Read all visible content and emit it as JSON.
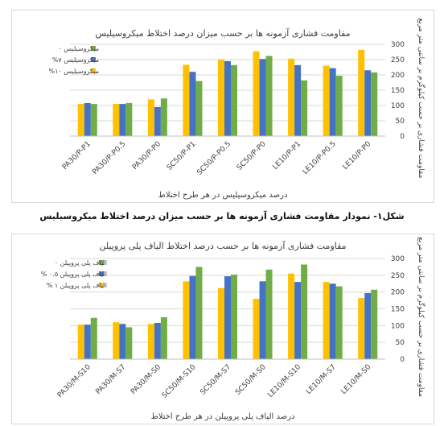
{
  "figure_caption": "شکل۱- نمودار مقاومت فشاری آزمونه ها بر حسب میزان درصد اختلاط میکروسیلیس",
  "chart_data": [
    {
      "type": "bar",
      "title": "مقاومت فشاری آزمونه ها بر حسب میزان درصد اختلاط میکروسیلیس",
      "xlabel": "درصد میکروسیلیس در هر طرح اختلاط",
      "ylabel": "مقاومت فشاری بر حسب کیلوگرم بر سانتی متر مربع",
      "ylim": [
        0,
        300
      ],
      "yticks": [
        "0",
        "50",
        "100",
        "150",
        "200",
        "250",
        "300"
      ],
      "grid": true,
      "legend_position": "top-left",
      "categories": [
        "PA30/P-P1",
        "PA30/P-P0.5",
        "PA30/P-P0",
        "SC50/P-P1",
        "SC50/P-P0.5",
        "SC50/P-P0",
        "LE10/P-P1",
        "LE10/P-P0.5",
        "LE10/P-P0"
      ],
      "series": [
        {
          "name": "میکروسیلیس ۰",
          "color": "#70ad47",
          "values": [
            105,
            108,
            123,
            180,
            232,
            262,
            182,
            197,
            208
          ]
        },
        {
          "name": "میکروسیلیس ۷%",
          "color": "#4472c4",
          "values": [
            108,
            105,
            95,
            210,
            245,
            252,
            232,
            222,
            215
          ]
        },
        {
          "name": "میکروسیلیس ۱۰%",
          "color": "#ffc000",
          "values": [
            105,
            105,
            120,
            233,
            250,
            277,
            253,
            230,
            282
          ]
        }
      ]
    },
    {
      "type": "bar",
      "title": "مقاومت فشاری آزمونه ها بر حسب درصد اختلاط الیاف پلی پروپیلن",
      "xlabel": "درصد الیاف پلی پروپیلن در هر طرح اختلاط",
      "ylabel": "مقاومت فشاری بر حسب کیلوگرم بر سانتی متر مربع",
      "ylim": [
        0,
        300
      ],
      "yticks": [
        "0",
        "50",
        "100",
        "150",
        "200",
        "250",
        "300"
      ],
      "grid": true,
      "legend_position": "top-left",
      "categories": [
        "PA30/M-S10",
        "PA30/M-S7",
        "PA30/M-S0",
        "SC50/M-S10",
        "SC50/M-S7",
        "SC50/M-S0",
        "LE10/M-S10",
        "LE10/M-S7",
        "LE10/M-S0"
      ],
      "series": [
        {
          "name": "الیاف پلی پروپیلن ۰",
          "color": "#70ad47",
          "values": [
            123,
            95,
            125,
            275,
            252,
            267,
            282,
            217,
            207
          ]
        },
        {
          "name": "الیاف پلی پروپیلن ۰.۵ %",
          "color": "#4472c4",
          "values": [
            103,
            105,
            108,
            248,
            247,
            232,
            230,
            225,
            197
          ]
        },
        {
          "name": "الیاف پلی پروپیلن ۱ %",
          "color": "#ffc000",
          "values": [
            103,
            110,
            105,
            232,
            212,
            180,
            255,
            230,
            182
          ]
        }
      ]
    }
  ]
}
